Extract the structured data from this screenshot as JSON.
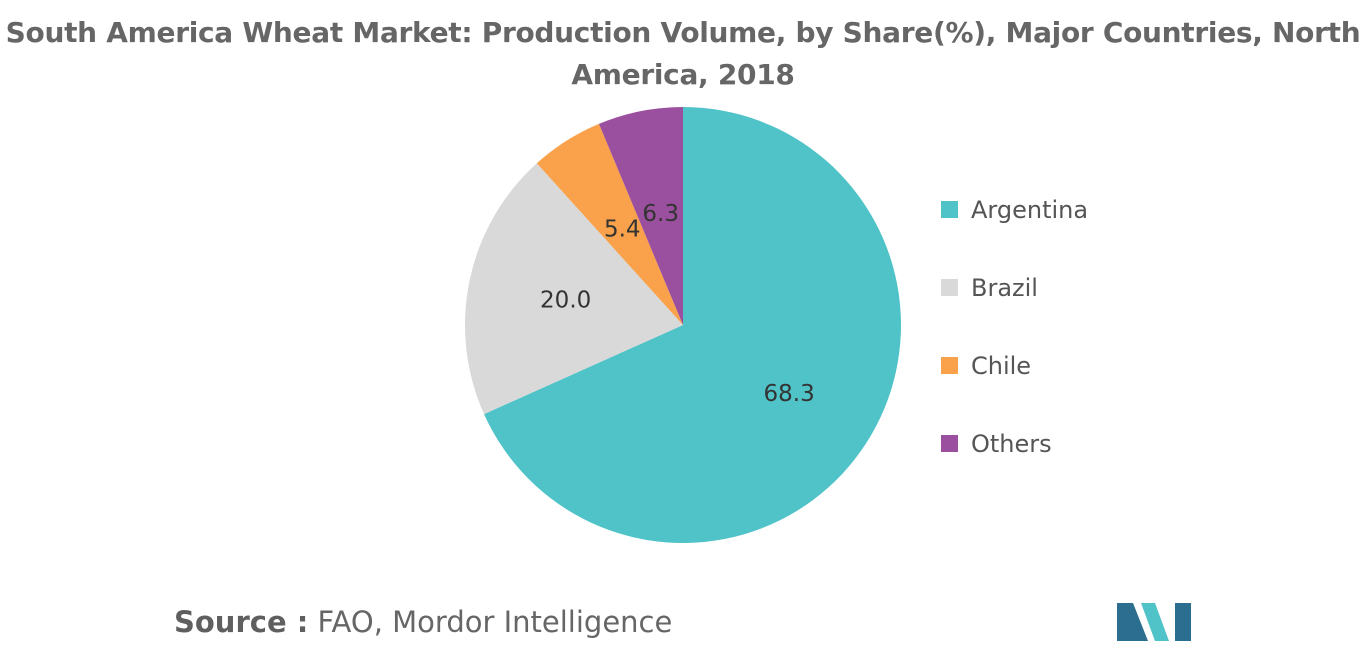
{
  "title": "South America Wheat Market: Production Volume, by Share(%), Major Countries, North America, 2018",
  "chart_data": {
    "type": "pie",
    "title": "South America Wheat Market: Production Volume, by Share(%), Major Countries, North America, 2018",
    "categories": [
      "Argentina",
      "Brazil",
      "Chile",
      "Others"
    ],
    "values": [
      68.3,
      20.0,
      5.4,
      6.3
    ],
    "value_labels": [
      "68.3",
      "20.0",
      "5.4",
      "6.3"
    ],
    "colors": [
      "#4fc3c8",
      "#d9d9d9",
      "#f9a14b",
      "#9a509f"
    ],
    "start_angle": "12 o'clock",
    "direction": "clockwise",
    "legend_position": "right"
  },
  "source": {
    "prefix": "Source :",
    "text": "FAO, Mordor Intelligence"
  },
  "logo": {
    "name": "mordor-intelligence-logo",
    "colors": [
      "#2c6e8f",
      "#4fc3c8"
    ]
  }
}
